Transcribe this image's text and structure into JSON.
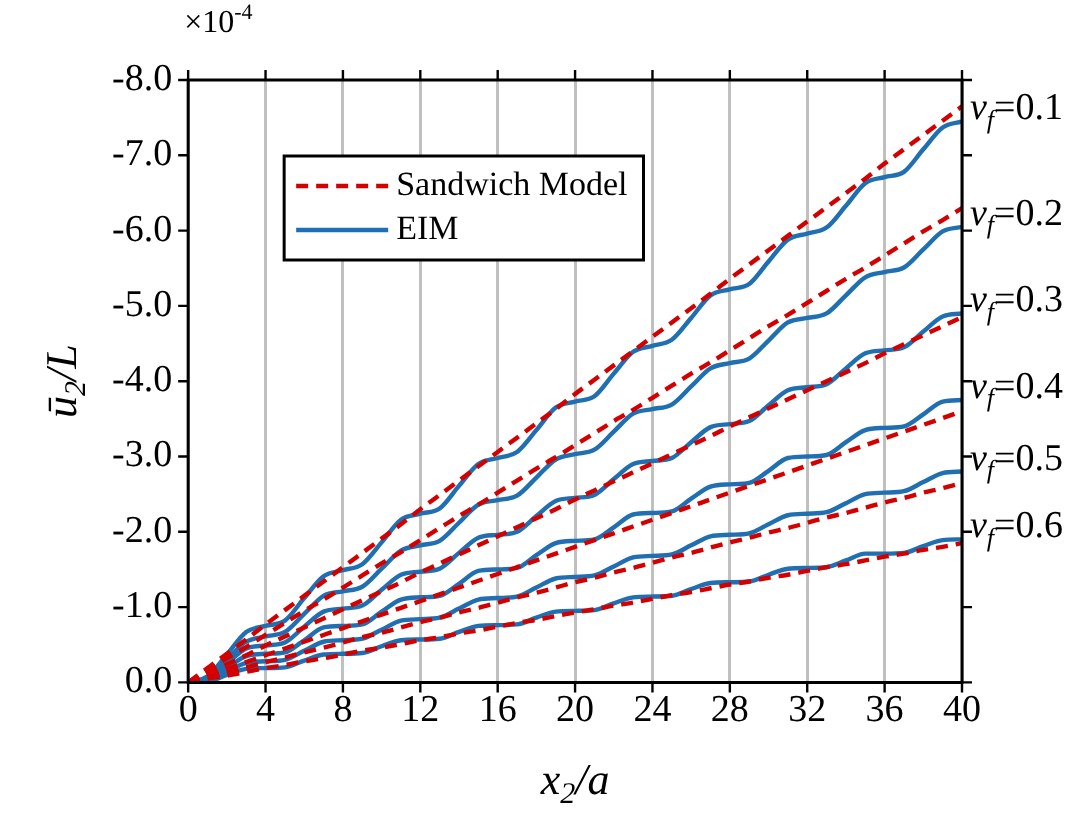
{
  "chart_data": {
    "type": "line",
    "xlabel": "x$_{2}$/a",
    "ylabel": "ū$_{2}$/L",
    "x": [
      0,
      1,
      2,
      3,
      4,
      5,
      6,
      7,
      8,
      9,
      10,
      11,
      12,
      13,
      14,
      15,
      16,
      17,
      18,
      19,
      20,
      21,
      22,
      23,
      24,
      25,
      26,
      27,
      28,
      29,
      30,
      31,
      32,
      33,
      34,
      35,
      36,
      37,
      38,
      39,
      40
    ],
    "xlim": [
      0,
      40
    ],
    "xticks": [
      0,
      4,
      8,
      12,
      16,
      20,
      24,
      28,
      32,
      36,
      40
    ],
    "ylim": [
      0,
      -8
    ],
    "yticks": [
      {
        "value": 0,
        "label": "0.0"
      },
      {
        "value": -1,
        "label": "-1.0"
      },
      {
        "value": -2,
        "label": "-2.0"
      },
      {
        "value": -3,
        "label": "-3.0"
      },
      {
        "value": -4,
        "label": "-4.0"
      },
      {
        "value": -5,
        "label": "-5.0"
      },
      {
        "value": -6,
        "label": "-6.0"
      },
      {
        "value": -7,
        "label": "-7.0"
      },
      {
        "value": -8,
        "label": "-8.0"
      }
    ],
    "grid": "x",
    "legend": "top left",
    "marker": "none",
    "series": [
      {
        "name": "Sandwich Model",
        "color": "#d40000",
        "line_style": "dashed",
        "values": [
          0,
          -0.19,
          -0.38,
          -0.57,
          -0.77,
          -0.96,
          -1.15,
          -1.34,
          -1.53,
          -1.72,
          -1.91,
          -2.1,
          -2.3,
          -2.49,
          -2.68,
          -2.87,
          -3.06,
          -3.25,
          -3.44,
          -3.63,
          -3.83,
          -4.02,
          -4.21,
          -4.4,
          -4.59,
          -4.78,
          -4.97,
          -5.16,
          -5.36,
          -5.55,
          -5.74,
          -5.93,
          -6.12,
          -6.31,
          -6.5,
          -6.69,
          -6.89,
          -7.08,
          -7.27,
          -7.46,
          -7.65
        ]
      },
      {
        "color": "#d40000",
        "line_style": "dashed",
        "values": [
          0,
          -0.16,
          -0.32,
          -0.47,
          -0.63,
          -0.79,
          -0.95,
          -1.1,
          -1.26,
          -1.42,
          -1.58,
          -1.73,
          -1.89,
          -2.05,
          -2.21,
          -2.36,
          -2.52,
          -2.68,
          -2.84,
          -2.99,
          -3.15,
          -3.31,
          -3.47,
          -3.62,
          -3.78,
          -3.94,
          -4.1,
          -4.25,
          -4.41,
          -4.57,
          -4.73,
          -4.88,
          -5.04,
          -5.2,
          -5.36,
          -5.51,
          -5.67,
          -5.83,
          -5.99,
          -6.14,
          -6.3
        ]
      },
      {
        "color": "#d40000",
        "line_style": "dashed",
        "values": [
          0,
          -0.12,
          -0.24,
          -0.36,
          -0.49,
          -0.61,
          -0.73,
          -0.85,
          -0.97,
          -1.09,
          -1.21,
          -1.33,
          -1.46,
          -1.58,
          -1.7,
          -1.82,
          -1.94,
          -2.06,
          -2.18,
          -2.3,
          -2.43,
          -2.55,
          -2.67,
          -2.79,
          -2.91,
          -3.03,
          -3.15,
          -3.27,
          -3.4,
          -3.52,
          -3.64,
          -3.76,
          -3.88,
          -4,
          -4.12,
          -4.24,
          -4.37,
          -4.49,
          -4.61,
          -4.73,
          -4.85
        ]
      },
      {
        "color": "#d40000",
        "line_style": "dashed",
        "values": [
          0,
          -0.09,
          -0.18,
          -0.27,
          -0.36,
          -0.45,
          -0.54,
          -0.63,
          -0.72,
          -0.81,
          -0.9,
          -0.99,
          -1.08,
          -1.17,
          -1.26,
          -1.35,
          -1.44,
          -1.53,
          -1.62,
          -1.71,
          -1.8,
          -1.89,
          -1.98,
          -2.07,
          -2.16,
          -2.25,
          -2.34,
          -2.43,
          -2.52,
          -2.61,
          -2.7,
          -2.79,
          -2.88,
          -2.97,
          -3.06,
          -3.15,
          -3.24,
          -3.33,
          -3.42,
          -3.51,
          -3.6
        ]
      },
      {
        "color": "#d40000",
        "line_style": "dashed",
        "values": [
          0,
          -0.07,
          -0.13,
          -0.2,
          -0.27,
          -0.33,
          -0.4,
          -0.46,
          -0.53,
          -0.6,
          -0.66,
          -0.73,
          -0.8,
          -0.86,
          -0.93,
          -0.99,
          -1.06,
          -1.13,
          -1.19,
          -1.26,
          -1.33,
          -1.39,
          -1.46,
          -1.52,
          -1.59,
          -1.66,
          -1.72,
          -1.79,
          -1.86,
          -1.92,
          -1.99,
          -2.05,
          -2.12,
          -2.19,
          -2.25,
          -2.32,
          -2.39,
          -2.45,
          -2.52,
          -2.58,
          -2.65
        ]
      },
      {
        "color": "#d40000",
        "line_style": "dashed",
        "values": [
          0,
          -0.05,
          -0.09,
          -0.14,
          -0.19,
          -0.23,
          -0.28,
          -0.32,
          -0.37,
          -0.42,
          -0.46,
          -0.51,
          -0.56,
          -0.6,
          -0.65,
          -0.69,
          -0.74,
          -0.79,
          -0.83,
          -0.88,
          -0.93,
          -0.97,
          -1.02,
          -1.06,
          -1.11,
          -1.16,
          -1.2,
          -1.25,
          -1.3,
          -1.34,
          -1.39,
          -1.43,
          -1.48,
          -1.53,
          -1.57,
          -1.62,
          -1.67,
          -1.71,
          -1.76,
          -1.8,
          -1.85
        ]
      },
      {
        "name": "EIM",
        "color": "#1f6fb2",
        "line_style": "solid",
        "values": [
          0,
          -0.08,
          -0.37,
          -0.67,
          -0.75,
          -0.82,
          -1.12,
          -1.41,
          -1.49,
          -1.57,
          -1.86,
          -2.16,
          -2.24,
          -2.31,
          -2.61,
          -2.9,
          -2.98,
          -3.06,
          -3.35,
          -3.65,
          -3.73,
          -3.8,
          -4.1,
          -4.39,
          -4.47,
          -4.55,
          -4.84,
          -5.14,
          -5.22,
          -5.29,
          -5.59,
          -5.88,
          -5.96,
          -6.04,
          -6.33,
          -6.63,
          -6.71,
          -6.78,
          -7.08,
          -7.37,
          -7.45
        ]
      },
      {
        "color": "#1f6fb2",
        "line_style": "solid",
        "values": [
          0,
          -0.06,
          -0.3,
          -0.54,
          -0.61,
          -0.67,
          -0.91,
          -1.15,
          -1.21,
          -1.27,
          -1.51,
          -1.75,
          -1.82,
          -1.88,
          -2.12,
          -2.36,
          -2.42,
          -2.48,
          -2.72,
          -2.96,
          -3.03,
          -3.09,
          -3.33,
          -3.57,
          -3.63,
          -3.69,
          -3.93,
          -4.17,
          -4.24,
          -4.3,
          -4.54,
          -4.78,
          -4.84,
          -4.9,
          -5.14,
          -5.38,
          -5.45,
          -5.51,
          -5.75,
          -5.99,
          -6.05
        ]
      },
      {
        "color": "#1f6fb2",
        "line_style": "solid",
        "values": [
          0,
          -0.04,
          -0.25,
          -0.45,
          -0.49,
          -0.53,
          -0.74,
          -0.94,
          -0.98,
          -1.02,
          -1.23,
          -1.43,
          -1.47,
          -1.51,
          -1.72,
          -1.92,
          -1.96,
          -2,
          -2.21,
          -2.41,
          -2.45,
          -2.49,
          -2.7,
          -2.9,
          -2.94,
          -2.98,
          -3.19,
          -3.39,
          -3.43,
          -3.47,
          -3.68,
          -3.88,
          -3.92,
          -3.96,
          -4.17,
          -4.37,
          -4.41,
          -4.45,
          -4.66,
          -4.86,
          -4.9
        ]
      },
      {
        "color": "#1f6fb2",
        "line_style": "solid",
        "values": [
          0,
          -0.02,
          -0.19,
          -0.35,
          -0.38,
          -0.4,
          -0.56,
          -0.73,
          -0.75,
          -0.77,
          -0.94,
          -1.1,
          -1.13,
          -1.15,
          -1.31,
          -1.48,
          -1.5,
          -1.52,
          -1.69,
          -1.85,
          -1.88,
          -1.9,
          -2.06,
          -2.23,
          -2.25,
          -2.27,
          -2.44,
          -2.6,
          -2.63,
          -2.65,
          -2.81,
          -2.98,
          -3,
          -3.02,
          -3.19,
          -3.35,
          -3.38,
          -3.4,
          -3.56,
          -3.73,
          -3.75
        ]
      },
      {
        "color": "#1f6fb2",
        "line_style": "solid",
        "values": [
          0,
          -0.02,
          -0.14,
          -0.26,
          -0.28,
          -0.3,
          -0.42,
          -0.54,
          -0.56,
          -0.58,
          -0.7,
          -0.82,
          -0.84,
          -0.86,
          -0.98,
          -1.1,
          -1.12,
          -1.14,
          -1.26,
          -1.38,
          -1.4,
          -1.42,
          -1.54,
          -1.66,
          -1.68,
          -1.7,
          -1.82,
          -1.94,
          -1.96,
          -1.98,
          -2.1,
          -2.22,
          -2.24,
          -2.26,
          -2.38,
          -2.5,
          -2.52,
          -2.54,
          -2.66,
          -2.78,
          -2.8
        ]
      },
      {
        "color": "#1f6fb2",
        "line_style": "solid",
        "values": [
          0,
          -0.01,
          -0.1,
          -0.18,
          -0.19,
          -0.2,
          -0.29,
          -0.37,
          -0.38,
          -0.39,
          -0.48,
          -0.56,
          -0.57,
          -0.58,
          -0.67,
          -0.75,
          -0.76,
          -0.77,
          -0.86,
          -0.94,
          -0.95,
          -0.96,
          -1.05,
          -1.13,
          -1.14,
          -1.15,
          -1.24,
          -1.32,
          -1.33,
          -1.34,
          -1.43,
          -1.51,
          -1.52,
          -1.53,
          -1.62,
          -1.71,
          -1.71,
          -1.72,
          -1.81,
          -1.89,
          -1.9
        ]
      }
    ],
    "annotations": [
      "×10$^{-4}$",
      "v$_{f}$=0.1",
      "v$_{f}$=0.2",
      "v$_{f}$=0.3",
      "v$_{f}$=0.4",
      "v$_{f}$=0.5",
      "v$_{f}$=0.6"
    ]
  }
}
